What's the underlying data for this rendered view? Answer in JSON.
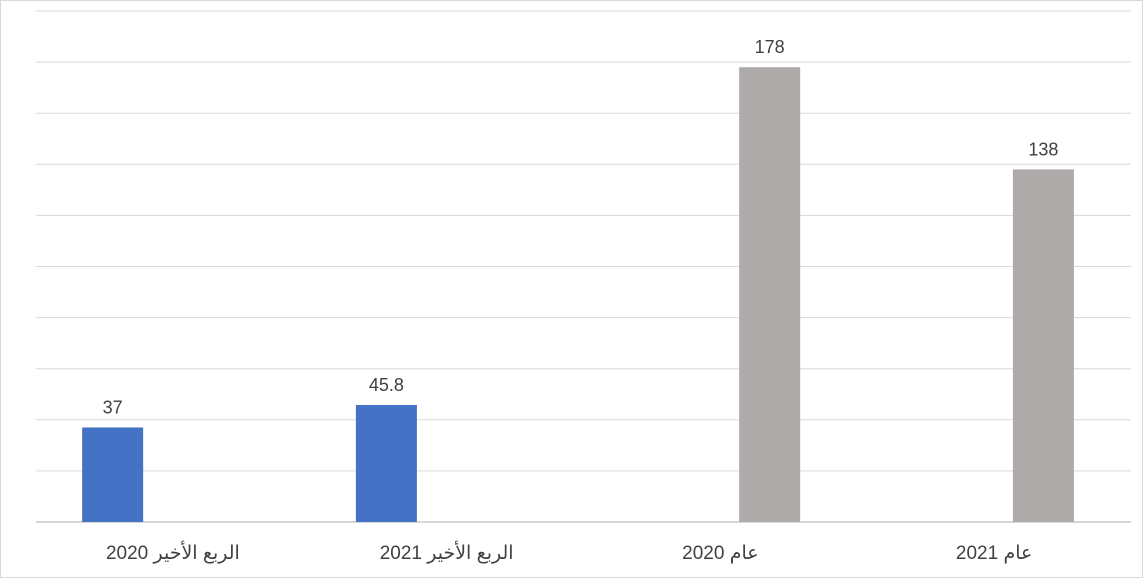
{
  "chart_data": {
    "type": "bar",
    "categories": [
      "الربع الأخير 2020",
      "الربع الأخير 2021",
      "عام 2020",
      "عام 2021"
    ],
    "values": [
      37,
      45.8,
      178,
      138
    ],
    "data_labels": [
      "37",
      "45.8",
      "178",
      "138"
    ],
    "colors": [
      "#4472c4",
      "#4472c4",
      "#aeaaaa",
      "#aeaaaa"
    ],
    "title": "",
    "xlabel": "",
    "ylabel": "",
    "ylim": [
      0,
      200
    ],
    "y_gridline_step": 20,
    "y_tick_labels_shown": false,
    "grid": true,
    "legend": "none"
  }
}
